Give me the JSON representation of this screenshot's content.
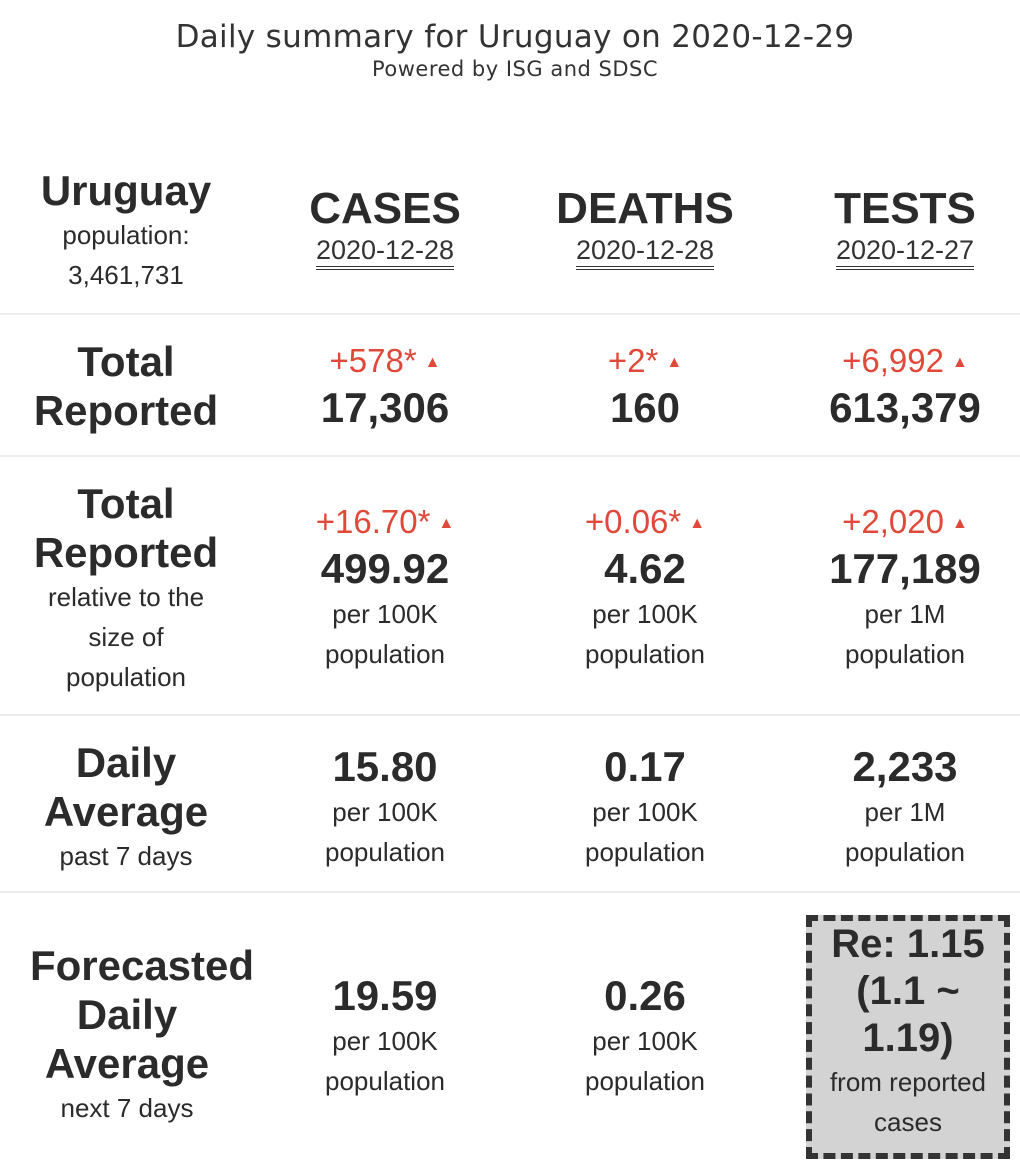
{
  "header": {
    "title": "Daily summary for Uruguay on 2020-12-29",
    "subtitle": "Powered by ISG and SDSC"
  },
  "country": {
    "name": "Uruguay",
    "population_label": "population:",
    "population_value": "3,461,731"
  },
  "columns": [
    {
      "label": "CASES",
      "date": "2020-12-28"
    },
    {
      "label": "DEATHS",
      "date": "2020-12-28"
    },
    {
      "label": "TESTS",
      "date": "2020-12-27"
    }
  ],
  "total_reported": {
    "label_line1": "Total",
    "label_line2": "Reported",
    "cells": [
      {
        "delta": "+578*",
        "value": "17,306"
      },
      {
        "delta": "+2*",
        "value": "160"
      },
      {
        "delta": "+6,992",
        "value": "613,379"
      }
    ]
  },
  "relative": {
    "label_line1": "Total",
    "label_line2": "Reported",
    "sub1": "relative to the",
    "sub2": "size of",
    "sub3": "population",
    "cells": [
      {
        "delta": "+16.70*",
        "value": "499.92",
        "unit1": "per 100K",
        "unit2": "population"
      },
      {
        "delta": "+0.06*",
        "value": "4.62",
        "unit1": "per 100K",
        "unit2": "population"
      },
      {
        "delta": "+2,020",
        "value": "177,189",
        "unit1": "per 1M",
        "unit2": "population"
      }
    ]
  },
  "daily_average": {
    "label_line1": "Daily",
    "label_line2": "Average",
    "sub": "past 7 days",
    "cells": [
      {
        "value": "15.80",
        "unit1": "per 100K",
        "unit2": "population"
      },
      {
        "value": "0.17",
        "unit1": "per 100K",
        "unit2": "population"
      },
      {
        "value": "2,233",
        "unit1": "per 1M",
        "unit2": "population"
      }
    ]
  },
  "forecast": {
    "label_line1": "Forecasted",
    "label_line2": "Daily",
    "label_line3": "Average",
    "sub": "next 7 days",
    "cells": [
      {
        "value": "19.59",
        "unit1": "per 100K",
        "unit2": "population"
      },
      {
        "value": "0.26",
        "unit1": "per 100K",
        "unit2": "population"
      }
    ],
    "re": {
      "line1": "Re: 1.15",
      "line2": "(1.1 ~",
      "line3": "1.19)",
      "from1": "from reported",
      "from2": "cases"
    }
  },
  "colors": {
    "delta": "#e0483a",
    "text": "#2b2b2b",
    "separator": "#ececec",
    "re_box_bg": "#d3d3d3"
  },
  "icons": {
    "increase": "triangle-up-icon"
  }
}
